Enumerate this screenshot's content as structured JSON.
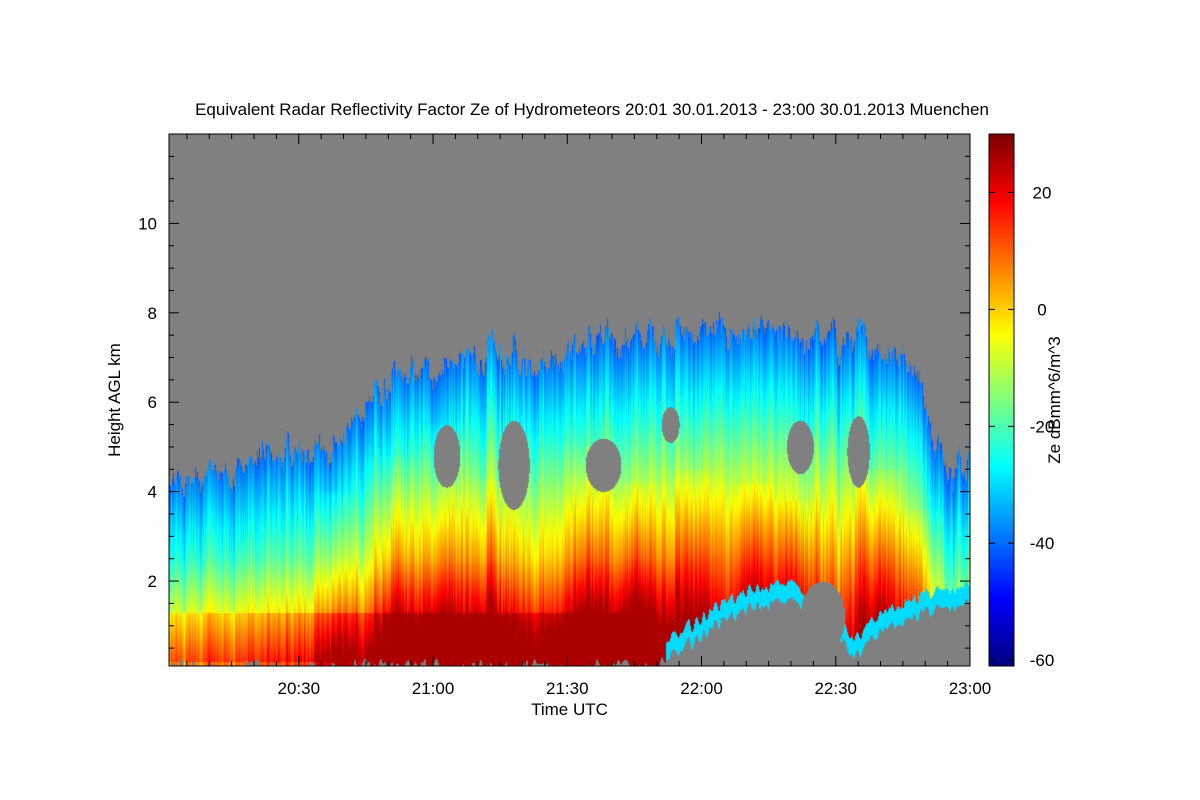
{
  "chart_data": {
    "type": "heatmap",
    "title": "Equivalent Radar Reflectivity Factor Ze of Hydrometeors   20:01 30.01.2013 - 23:00 30.01.2013 Muenchen",
    "xlabel": "Time UTC",
    "ylabel": "Height AGL km",
    "x_tick_labels": [
      "20:30",
      "21:00",
      "21:30",
      "22:00",
      "22:30",
      "23:00"
    ],
    "x_tick_minutes": [
      30,
      60,
      90,
      120,
      150,
      180
    ],
    "xlim_minutes_after_2000": [
      1,
      180
    ],
    "y_tick_labels": [
      "2",
      "4",
      "6",
      "8",
      "10"
    ],
    "y_tick_values": [
      2,
      4,
      6,
      8,
      10
    ],
    "ylim_km": [
      0.1,
      12
    ],
    "colorbar": {
      "label": "Ze dBmm^6/m^3",
      "tick_labels": [
        "20",
        "0",
        "-20",
        "-40",
        "-60"
      ],
      "tick_values": [
        20,
        0,
        -20,
        -40,
        -60
      ],
      "range": [
        -61,
        30
      ],
      "colormap": "jet"
    },
    "background_color": "#808080",
    "grid": false
  }
}
